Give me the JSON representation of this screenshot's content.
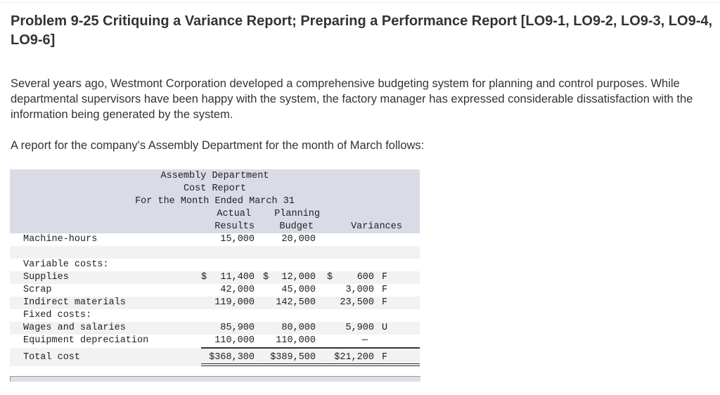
{
  "title": "Problem 9-25 Critiquing a Variance Report; Preparing a Performance Report [LO9-1, LO9-2, LO9-3, LO9-4, LO9-6]",
  "paragraphs": [
    "Several years ago, Westmont Corporation developed a comprehensive budgeting system for planning and control purposes. While departmental supervisors have been happy with the system, the factory manager has expressed considerable dissatisfaction with the information being generated by the system.",
    "A report for the company's Assembly Department for the month of March follows:"
  ],
  "report": {
    "heading": [
      "Assembly Department",
      "Cost Report",
      "For the Month Ended March 31"
    ],
    "col_actual": [
      "Actual",
      "Results"
    ],
    "col_budget": [
      "Planning",
      "Budget"
    ],
    "col_var": "Variances",
    "machine_hours": {
      "label": "Machine-hours",
      "actual": "15,000",
      "budget": "20,000"
    },
    "variable_label": "Variable costs:",
    "fixed_label": "Fixed costs:",
    "rows": [
      {
        "label": "Supplies",
        "actual": "11,400",
        "budget": "12,000",
        "var": "600",
        "fu": "F"
      },
      {
        "label": "Scrap",
        "actual": "42,000",
        "budget": "45,000",
        "var": "3,000",
        "fu": "F"
      },
      {
        "label": "Indirect materials",
        "actual": "119,000",
        "budget": "142,500",
        "var": "23,500",
        "fu": "F"
      },
      {
        "label": "Wages and salaries",
        "actual": "85,900",
        "budget": "80,000",
        "var": "5,900",
        "fu": "U"
      },
      {
        "label": "Equipment depreciation",
        "actual": "110,000",
        "budget": "110,000",
        "var": "—",
        "fu": ""
      }
    ],
    "total": {
      "label": "Total cost",
      "actual": "$368,300",
      "budget": "$389,500",
      "var": "$21,200",
      "fu": "F"
    },
    "dollar": "$"
  }
}
